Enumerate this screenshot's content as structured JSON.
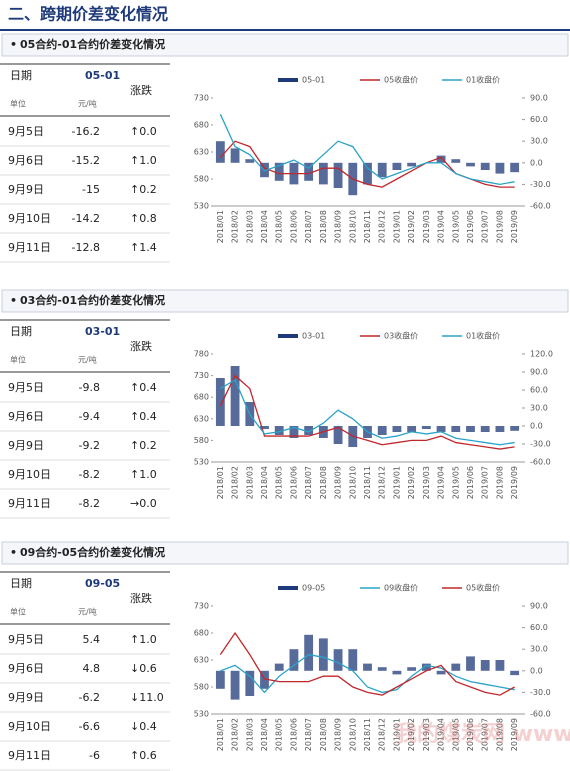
{
  "header": {
    "title": "二、跨期价差变化情况"
  },
  "sections": [
    {
      "title": "05合约-01合约价差变化情况",
      "table": {
        "header": [
          "日期",
          "05-01",
          "涨跌"
        ],
        "units": [
          "单位",
          "元/吨"
        ],
        "rows": [
          [
            "9月5日",
            -16.2,
            "↑0.0"
          ],
          [
            "9月6日",
            -15.2,
            "↑1.0"
          ],
          [
            "9月9日",
            -15.0,
            "↑0.2"
          ],
          [
            "9月10日",
            -14.2,
            "↑0.8"
          ],
          [
            "9月11日",
            -12.8,
            "↑1.4"
          ]
        ],
        "change_colors": [
          "#e03a3a",
          "#e03a3a",
          "#e03a3a",
          "#e03a3a",
          "#e03a3a"
        ]
      }
    },
    {
      "title": "03合约-01合约价差变化情况",
      "table": {
        "header": [
          "日期",
          "03-01",
          "涨跌"
        ],
        "units": [
          "单位",
          "元/吨"
        ],
        "rows": [
          [
            "9月5日",
            -9.8,
            "↑0.4"
          ],
          [
            "9月6日",
            -9.4,
            "↑0.4"
          ],
          [
            "9月9日",
            -9.2,
            "↑0.2"
          ],
          [
            "9月10日",
            -8.2,
            "↑1.0"
          ],
          [
            "9月11日",
            -8.2,
            "→0.0"
          ]
        ],
        "change_colors": [
          "#e03a3a",
          "#e03a3a",
          "#e03a3a",
          "#e03a3a",
          "#333333"
        ]
      }
    },
    {
      "title": "09合约-05合约价差变化情况",
      "table": {
        "header": [
          "日期",
          "09-05",
          "涨跌"
        ],
        "units": [
          "单位",
          "元/吨"
        ],
        "rows": [
          [
            "9月5日",
            5.4,
            "↑1.0"
          ],
          [
            "9月6日",
            4.8,
            "↓0.6"
          ],
          [
            "9月9日",
            -6.2,
            "↓11.0"
          ],
          [
            "9月10日",
            -6.6,
            "↓0.4"
          ],
          [
            "9月11日",
            -6.0,
            "↑0.6"
          ]
        ],
        "change_colors": [
          "#e03a3a",
          "#2f5fc4",
          "#2f5fc4",
          "#2f5fc4",
          "#e03a3a"
        ]
      }
    }
  ],
  "chart_data": [
    {
      "type": "combo",
      "categories": [
        "2018/01",
        "2018/02",
        "2018/03",
        "2018/04",
        "2018/05",
        "2018/06",
        "2018/07",
        "2018/08",
        "2018/09",
        "2018/10",
        "2018/11",
        "2018/12",
        "2019/01",
        "2019/02",
        "2019/03",
        "2019/04",
        "2019/05",
        "2019/06",
        "2019/07",
        "2019/08",
        "2019/09"
      ],
      "ylim": [
        530,
        730
      ],
      "yticks": [
        530,
        580,
        630,
        680,
        730
      ],
      "y2lim": [
        -60,
        90
      ],
      "y2ticks": [
        {
          "value": -60,
          "label": "-60.0"
        },
        {
          "value": -30,
          "label": "-30.0"
        },
        {
          "value": 0,
          "label": "0.0"
        },
        {
          "value": 30,
          "label": "30.0"
        },
        {
          "value": 60,
          "label": "60.0"
        },
        {
          "value": 90,
          "label": "90.0"
        }
      ],
      "series": [
        {
          "name": "05-01",
          "type": "bar",
          "axis": "y2",
          "color": "#1f3a7a",
          "values": [
            30,
            20,
            5,
            -20,
            -25,
            -30,
            -25,
            -30,
            -35,
            -45,
            -30,
            -20,
            -10,
            -5,
            0,
            10,
            5,
            -5,
            -10,
            -15,
            -13
          ]
        },
        {
          "name": "05收盘价",
          "type": "line",
          "color": "#c0282d",
          "values": [
            620,
            650,
            640,
            600,
            590,
            590,
            590,
            600,
            600,
            580,
            570,
            565,
            580,
            595,
            610,
            620,
            590,
            580,
            570,
            565,
            565
          ]
        },
        {
          "name": "01收盘价",
          "type": "line",
          "color": "#2aa3c8",
          "values": [
            700,
            640,
            625,
            595,
            605,
            615,
            600,
            625,
            650,
            640,
            600,
            580,
            590,
            600,
            610,
            610,
            590,
            580,
            575,
            570,
            575
          ]
        }
      ]
    },
    {
      "type": "combo",
      "categories": [
        "2018/01",
        "2018/02",
        "2018/03",
        "2018/04",
        "2018/05",
        "2018/06",
        "2018/07",
        "2018/08",
        "2018/09",
        "2018/10",
        "2018/11",
        "2018/12",
        "2019/01",
        "2019/02",
        "2019/03",
        "2019/04",
        "2019/05",
        "2019/06",
        "2019/07",
        "2019/08",
        "2019/09"
      ],
      "ylim": [
        530,
        780
      ],
      "yticks": [
        530,
        580,
        630,
        680,
        730,
        780
      ],
      "y2lim": [
        -60,
        120
      ],
      "y2ticks": [
        {
          "value": -60,
          "label": "-60.0"
        },
        {
          "value": -30,
          "label": "-30.0"
        },
        {
          "value": 0,
          "label": "0.0"
        },
        {
          "value": 30,
          "label": "30.0"
        },
        {
          "value": 60,
          "label": "60.0"
        },
        {
          "value": 90,
          "label": "90.0"
        },
        {
          "value": 120,
          "label": "120.0"
        }
      ],
      "series": [
        {
          "name": "03-01",
          "type": "bar",
          "axis": "y2",
          "color": "#1f3a7a",
          "values": [
            80,
            100,
            40,
            -5,
            -15,
            -20,
            -15,
            -20,
            -30,
            -35,
            -20,
            -15,
            -10,
            -10,
            -5,
            -10,
            -10,
            -10,
            -10,
            -10,
            -8
          ]
        },
        {
          "name": "03收盘价",
          "type": "line",
          "color": "#c0282d",
          "values": [
            660,
            730,
            700,
            590,
            590,
            590,
            590,
            600,
            610,
            590,
            580,
            570,
            575,
            580,
            580,
            590,
            575,
            570,
            565,
            560,
            565
          ]
        },
        {
          "name": "01收盘价",
          "type": "line",
          "color": "#2aa3c8",
          "values": [
            700,
            720,
            640,
            595,
            600,
            610,
            600,
            620,
            650,
            630,
            600,
            585,
            590,
            600,
            595,
            600,
            585,
            580,
            575,
            570,
            575
          ]
        }
      ]
    },
    {
      "type": "combo",
      "categories": [
        "2018/01",
        "2018/02",
        "2018/03",
        "2018/04",
        "2018/05",
        "2018/06",
        "2018/07",
        "2018/08",
        "2018/09",
        "2018/10",
        "2018/11",
        "2018/12",
        "2019/01",
        "2019/02",
        "2019/03",
        "2019/04",
        "2019/05",
        "2019/06",
        "2019/07",
        "2019/08",
        "2019/09"
      ],
      "ylim": [
        530,
        730
      ],
      "yticks": [
        530,
        580,
        630,
        680,
        730
      ],
      "y2lim": [
        -60,
        90
      ],
      "y2ticks": [
        {
          "value": -60,
          "label": "-60.0"
        },
        {
          "value": -30,
          "label": "-30.0"
        },
        {
          "value": 0,
          "label": "0.0"
        },
        {
          "value": 30,
          "label": "30.0"
        },
        {
          "value": 60,
          "label": "60.0"
        },
        {
          "value": 90,
          "label": "90.0"
        }
      ],
      "series": [
        {
          "name": "09-05",
          "type": "bar",
          "axis": "y2",
          "color": "#1f3a7a",
          "values": [
            -25,
            -40,
            -35,
            -25,
            10,
            30,
            50,
            45,
            30,
            30,
            10,
            5,
            -5,
            5,
            10,
            -5,
            10,
            20,
            15,
            15,
            -6
          ]
        },
        {
          "name": "09收盘价",
          "type": "line",
          "color": "#2aa3c8",
          "values": [
            610,
            620,
            600,
            570,
            600,
            620,
            640,
            635,
            625,
            610,
            580,
            570,
            575,
            600,
            620,
            615,
            600,
            590,
            585,
            580,
            575
          ]
        },
        {
          "name": "05收盘价",
          "type": "line",
          "color": "#c0282d",
          "values": [
            640,
            680,
            640,
            595,
            590,
            590,
            590,
            600,
            600,
            580,
            570,
            565,
            580,
            595,
            610,
            620,
            590,
            580,
            570,
            565,
            580
          ]
        }
      ]
    }
  ],
  "watermark": "我的煤炭网 www.mycoal.cn"
}
